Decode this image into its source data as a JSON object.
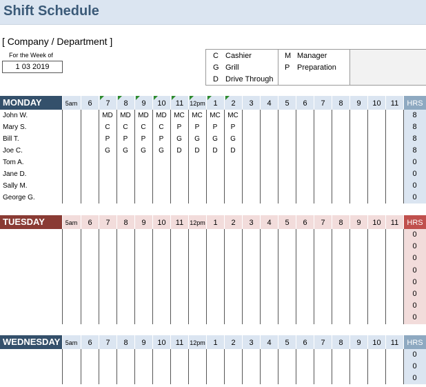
{
  "title": "Shift Schedule",
  "company": "[ Company / Department ]",
  "week_label": "For the Week of",
  "week_value": "1 03 2019",
  "legend": [
    {
      "code": "C",
      "label": "Cashier"
    },
    {
      "code": "G",
      "label": "Grill"
    },
    {
      "code": "D",
      "label": "Drive Through"
    },
    {
      "code": "M",
      "label": "Manager"
    },
    {
      "code": "P",
      "label": "Preparation"
    }
  ],
  "hours": [
    "5am",
    "6",
    "7",
    "8",
    "9",
    "10",
    "11",
    "12pm",
    "1",
    "2",
    "3",
    "4",
    "5",
    "6",
    "7",
    "8",
    "9",
    "10",
    "11"
  ],
  "hrs_label": "HRS",
  "days": [
    {
      "name": "MONDAY",
      "color": "#34506b",
      "hcolor": "#dbe5f1",
      "hrs_bg": "#dbe5f1",
      "employees": [
        {
          "name": "John W.",
          "shifts": [
            "",
            "",
            "MD",
            "MD",
            "MD",
            "MD",
            "MC",
            "MC",
            "MC",
            "MC",
            "",
            "",
            "",
            "",
            "",
            "",
            "",
            "",
            ""
          ],
          "hrs": "8"
        },
        {
          "name": "Mary S.",
          "shifts": [
            "",
            "",
            "C",
            "C",
            "C",
            "C",
            "P",
            "P",
            "P",
            "P",
            "",
            "",
            "",
            "",
            "",
            "",
            "",
            "",
            ""
          ],
          "hrs": "8"
        },
        {
          "name": "Bill T.",
          "shifts": [
            "",
            "",
            "P",
            "P",
            "P",
            "P",
            "G",
            "G",
            "G",
            "G",
            "",
            "",
            "",
            "",
            "",
            "",
            "",
            "",
            ""
          ],
          "hrs": "8"
        },
        {
          "name": "Joe C.",
          "shifts": [
            "",
            "",
            "G",
            "G",
            "G",
            "G",
            "D",
            "D",
            "D",
            "D",
            "",
            "",
            "",
            "",
            "",
            "",
            "",
            "",
            ""
          ],
          "hrs": "8"
        },
        {
          "name": "Tom A.",
          "shifts": [],
          "hrs": "0"
        },
        {
          "name": "Jane D.",
          "shifts": [],
          "hrs": "0"
        },
        {
          "name": "Sally M.",
          "shifts": [],
          "hrs": "0"
        },
        {
          "name": "George G.",
          "shifts": [],
          "hrs": "0"
        }
      ]
    },
    {
      "name": "TUESDAY",
      "color": "#8a3b34",
      "hcolor": "#f2dcdb",
      "hrs_bg": "#f2dcdb",
      "employees": [
        {
          "name": "",
          "shifts": [],
          "hrs": "0"
        },
        {
          "name": "",
          "shifts": [],
          "hrs": "0"
        },
        {
          "name": "",
          "shifts": [],
          "hrs": "0"
        },
        {
          "name": "",
          "shifts": [],
          "hrs": "0"
        },
        {
          "name": "",
          "shifts": [],
          "hrs": "0"
        },
        {
          "name": "",
          "shifts": [],
          "hrs": "0"
        },
        {
          "name": "",
          "shifts": [],
          "hrs": "0"
        },
        {
          "name": "",
          "shifts": [],
          "hrs": "0"
        }
      ]
    },
    {
      "name": "WEDNESDAY",
      "color": "#34506b",
      "hcolor": "#dbe5f1",
      "hrs_bg": "#dbe5f1",
      "employees": [
        {
          "name": "",
          "shifts": [],
          "hrs": "0"
        },
        {
          "name": "",
          "shifts": [],
          "hrs": "0"
        },
        {
          "name": "",
          "shifts": [],
          "hrs": "0"
        }
      ]
    }
  ]
}
